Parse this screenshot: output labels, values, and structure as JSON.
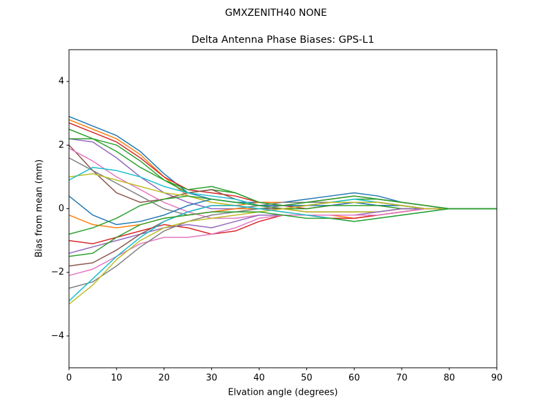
{
  "chart_data": {
    "type": "line",
    "suptitle": "GMXZENITH40     NONE",
    "title": "Delta Antenna Phase Biases: GPS-L1",
    "xlabel": "Elvation angle (degrees)",
    "ylabel": "Bias from mean (mm)",
    "x": [
      0,
      5,
      10,
      15,
      20,
      25,
      30,
      35,
      40,
      45,
      50,
      55,
      60,
      65,
      70,
      75,
      80,
      85,
      90
    ],
    "xlim": [
      0,
      90
    ],
    "xticks": [
      0,
      10,
      20,
      30,
      40,
      50,
      60,
      70,
      80,
      90
    ],
    "ylim": [
      -5,
      5
    ],
    "yticks": [
      {
        "value": -4,
        "label": "−4"
      },
      {
        "value": -2,
        "label": "−2"
      },
      0,
      2,
      4
    ],
    "grid": false,
    "series": [
      {
        "color": "#1f77b4",
        "values": [
          2.9,
          2.6,
          2.3,
          1.8,
          1.1,
          0.5,
          0.3,
          0.2,
          0.2,
          0.2,
          0.3,
          0.4,
          0.5,
          0.4,
          0.2,
          0.1,
          0,
          0,
          0
        ]
      },
      {
        "color": "#ff7f0e",
        "values": [
          2.8,
          2.5,
          2.2,
          1.7,
          1.0,
          0.4,
          0.2,
          0.1,
          0.2,
          0.2,
          0.2,
          0.3,
          0.4,
          0.3,
          0.2,
          0.1,
          0,
          0,
          0
        ]
      },
      {
        "color": "#2ca02c",
        "values": [
          2.5,
          2.2,
          2.0,
          1.5,
          0.9,
          0.5,
          0.6,
          0.5,
          0.2,
          0.1,
          0.1,
          0.2,
          0.3,
          0.3,
          0.2,
          0.1,
          0,
          0,
          0
        ]
      },
      {
        "color": "#d62728",
        "values": [
          2.7,
          2.4,
          2.1,
          1.6,
          1.0,
          0.6,
          0.5,
          0.4,
          0.2,
          0.1,
          0.0,
          0.1,
          0.2,
          0.2,
          0.1,
          0.0,
          0,
          0,
          0
        ]
      },
      {
        "color": "#9467bd",
        "values": [
          2.2,
          2.1,
          1.6,
          1.0,
          0.5,
          0.2,
          0.0,
          0.0,
          0.1,
          0.1,
          0.1,
          0.2,
          0.2,
          0.2,
          0.1,
          0.0,
          0,
          0,
          0
        ]
      },
      {
        "color": "#8c564b",
        "values": [
          2.0,
          1.2,
          0.5,
          0.2,
          0.3,
          0.5,
          0.6,
          0.3,
          0.1,
          0,
          -0.1,
          -0.1,
          -0.1,
          -0.1,
          0,
          0,
          0,
          0,
          0
        ]
      },
      {
        "color": "#e377c2",
        "values": [
          1.9,
          1.5,
          1.0,
          0.6,
          0.2,
          -0.1,
          -0.3,
          -0.3,
          -0.2,
          -0.2,
          -0.2,
          -0.3,
          -0.3,
          -0.2,
          -0.1,
          0,
          0,
          0,
          0
        ]
      },
      {
        "color": "#7f7f7f",
        "values": [
          1.6,
          1.2,
          0.8,
          0.4,
          0.0,
          -0.2,
          -0.1,
          0.0,
          0.1,
          0.2,
          0.2,
          0.2,
          0.2,
          0.1,
          0.1,
          0,
          0,
          0,
          0
        ]
      },
      {
        "color": "#bcbd22",
        "values": [
          1.0,
          1.1,
          0.9,
          0.7,
          0.5,
          0.4,
          0.2,
          0.1,
          0,
          0,
          -0.1,
          -0.1,
          -0.1,
          -0.1,
          0,
          0,
          0,
          0,
          0
        ]
      },
      {
        "color": "#17becf",
        "values": [
          0.9,
          1.3,
          1.2,
          1.0,
          0.7,
          0.5,
          0.4,
          0.3,
          0.1,
          0.0,
          0.1,
          0.2,
          0.3,
          0.2,
          0.1,
          0,
          0,
          0,
          0
        ]
      },
      {
        "color": "#1f77b4",
        "values": [
          0.4,
          -0.2,
          -0.5,
          -0.4,
          -0.2,
          0.1,
          0.3,
          0.2,
          0.1,
          0.1,
          0.1,
          0.1,
          0.2,
          0.1,
          0.1,
          0,
          0,
          0,
          0
        ]
      },
      {
        "color": "#ff7f0e",
        "values": [
          -0.2,
          -0.5,
          -0.6,
          -0.5,
          -0.3,
          -0.2,
          -0.1,
          0.0,
          0.0,
          -0.1,
          -0.2,
          -0.2,
          -0.3,
          -0.2,
          -0.1,
          0,
          0,
          0,
          0
        ]
      },
      {
        "color": "#2ca02c",
        "values": [
          -0.8,
          -0.6,
          -0.3,
          0.1,
          0.3,
          0.4,
          0.3,
          0.2,
          0.1,
          0.0,
          0.0,
          0.1,
          0.1,
          0.1,
          0,
          0,
          0,
          0,
          0
        ]
      },
      {
        "color": "#d62728",
        "values": [
          -1.0,
          -1.1,
          -0.9,
          -0.7,
          -0.5,
          -0.6,
          -0.8,
          -0.7,
          -0.4,
          -0.2,
          -0.2,
          -0.3,
          -0.3,
          -0.2,
          -0.1,
          0,
          0,
          0,
          0
        ]
      },
      {
        "color": "#9467bd",
        "values": [
          -1.4,
          -1.2,
          -1.0,
          -0.8,
          -0.6,
          -0.5,
          -0.6,
          -0.4,
          -0.2,
          -0.2,
          -0.2,
          -0.2,
          -0.2,
          -0.1,
          0,
          0,
          0,
          0,
          0
        ]
      },
      {
        "color": "#8c564b",
        "values": [
          -1.8,
          -1.7,
          -1.3,
          -0.8,
          -0.4,
          -0.1,
          0.1,
          0.1,
          0.0,
          0.0,
          0.1,
          0.2,
          0.2,
          0.2,
          0.1,
          0,
          0,
          0,
          0
        ]
      },
      {
        "color": "#e377c2",
        "values": [
          -2.1,
          -1.9,
          -1.5,
          -1.1,
          -0.9,
          -0.9,
          -0.8,
          -0.6,
          -0.3,
          -0.2,
          -0.2,
          -0.2,
          -0.2,
          -0.2,
          -0.1,
          0,
          0,
          0,
          0
        ]
      },
      {
        "color": "#7f7f7f",
        "values": [
          -2.5,
          -2.3,
          -1.8,
          -1.2,
          -0.7,
          -0.4,
          -0.2,
          -0.1,
          0.0,
          0.1,
          0.2,
          0.3,
          0.4,
          0.3,
          0.2,
          0.1,
          0,
          0,
          0
        ]
      },
      {
        "color": "#bcbd22",
        "values": [
          -3.0,
          -2.4,
          -1.6,
          -1.0,
          -0.6,
          -0.4,
          -0.3,
          -0.2,
          -0.1,
          0.0,
          0.1,
          0.2,
          0.2,
          0.2,
          0.1,
          0,
          0,
          0,
          0
        ]
      },
      {
        "color": "#17becf",
        "values": [
          -2.9,
          -2.2,
          -1.5,
          -0.9,
          -0.4,
          -0.1,
          0.1,
          0.1,
          0.0,
          -0.1,
          -0.2,
          -0.3,
          -0.4,
          -0.3,
          -0.2,
          -0.1,
          0,
          0,
          0
        ]
      },
      {
        "color": "#2ca02c",
        "values": [
          -1.5,
          -1.4,
          -0.9,
          -0.5,
          -0.3,
          -0.2,
          -0.1,
          -0.1,
          -0.1,
          -0.2,
          -0.3,
          -0.3,
          -0.4,
          -0.3,
          -0.2,
          -0.1,
          0,
          0,
          0
        ]
      },
      {
        "color": "#2ca02c",
        "values": [
          2.2,
          2.2,
          1.8,
          1.3,
          0.9,
          0.6,
          0.7,
          0.5,
          0.2,
          0.1,
          0.2,
          0.3,
          0.4,
          0.3,
          0.2,
          0.1,
          0,
          0,
          0
        ]
      }
    ]
  }
}
